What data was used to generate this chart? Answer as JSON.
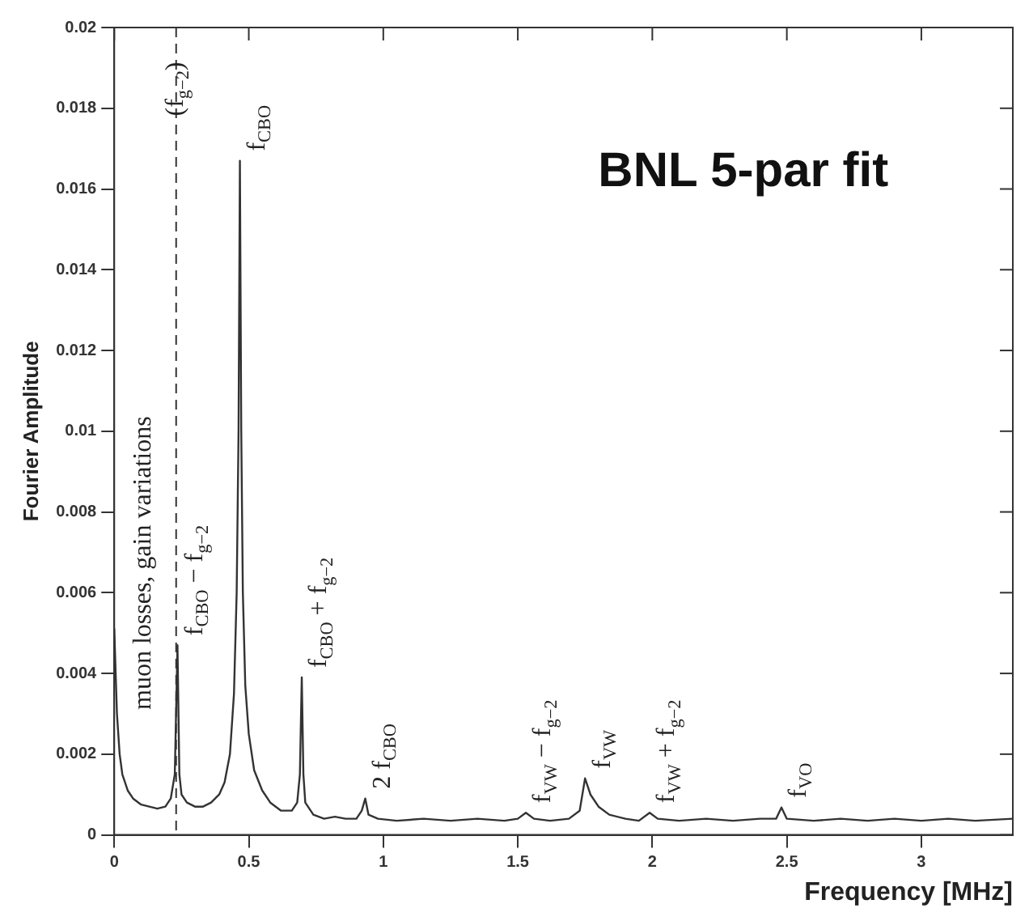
{
  "chart_data": {
    "type": "line",
    "title": "BNL 5-par fit",
    "xlabel": "Frequency [MHz]",
    "ylabel": "Fourier Amplitude",
    "x": [
      0,
      0.01,
      0.02,
      0.03,
      0.05,
      0.07,
      0.1,
      0.13,
      0.16,
      0.19,
      0.21,
      0.225,
      0.235,
      0.242,
      0.25,
      0.27,
      0.3,
      0.33,
      0.36,
      0.39,
      0.41,
      0.43,
      0.445,
      0.455,
      0.462,
      0.467,
      0.472,
      0.478,
      0.487,
      0.5,
      0.52,
      0.55,
      0.58,
      0.62,
      0.66,
      0.68,
      0.69,
      0.697,
      0.703,
      0.71,
      0.74,
      0.78,
      0.82,
      0.86,
      0.9,
      0.92,
      0.933,
      0.945,
      0.98,
      1.05,
      1.15,
      1.25,
      1.35,
      1.45,
      1.5,
      1.53,
      1.56,
      1.62,
      1.69,
      1.73,
      1.75,
      1.77,
      1.8,
      1.84,
      1.9,
      1.95,
      1.99,
      2.02,
      2.1,
      2.2,
      2.3,
      2.4,
      2.46,
      2.48,
      2.5,
      2.6,
      2.7,
      2.8,
      2.9,
      3.0,
      3.1,
      3.2,
      3.34
    ],
    "series": [
      {
        "color": "#333333",
        "values": [
          0.0051,
          0.003,
          0.002,
          0.0015,
          0.0011,
          0.0009,
          0.00075,
          0.0007,
          0.00065,
          0.0007,
          0.0009,
          0.0015,
          0.0047,
          0.0015,
          0.001,
          0.0008,
          0.0007,
          0.0007,
          0.0008,
          0.001,
          0.0013,
          0.002,
          0.0035,
          0.006,
          0.01,
          0.0167,
          0.01,
          0.006,
          0.0037,
          0.0025,
          0.0016,
          0.0011,
          0.0008,
          0.0006,
          0.0006,
          0.0008,
          0.0015,
          0.0039,
          0.0015,
          0.0008,
          0.0005,
          0.0004,
          0.00045,
          0.0004,
          0.0004,
          0.0006,
          0.0009,
          0.0005,
          0.0004,
          0.00035,
          0.0004,
          0.00035,
          0.0004,
          0.00035,
          0.0004,
          0.00055,
          0.0004,
          0.00035,
          0.0004,
          0.0006,
          0.0014,
          0.001,
          0.0007,
          0.0005,
          0.0004,
          0.00035,
          0.00055,
          0.0004,
          0.00035,
          0.0004,
          0.00035,
          0.0004,
          0.0004,
          0.00068,
          0.0004,
          0.00035,
          0.0004,
          0.00035,
          0.0004,
          0.00035,
          0.0004,
          0.00035,
          0.0004
        ]
      }
    ],
    "xlim": [
      0,
      3.34
    ],
    "xticks": [
      0,
      0.5,
      1,
      1.5,
      2,
      2.5,
      3
    ],
    "ylim": [
      0,
      0.02
    ],
    "yticks": [
      0,
      0.002,
      0.004,
      0.006,
      0.008,
      0.01,
      0.012,
      0.014,
      0.016,
      0.018,
      0.02
    ],
    "grid": false,
    "legend": false,
    "marker": "none",
    "line_style": "solid",
    "ref_lines": [
      {
        "axis": "x",
        "value": 0.23,
        "label": "(f$_{g−2}$)",
        "color": "#333333",
        "line_style": "dashed"
      }
    ],
    "annotations": [
      "muon losses, gain variations",
      {
        "text": "f$_{CBO}$",
        "x": 0.467,
        "y": 0.0167
      },
      {
        "text": "f$_{CBO}$ − f$_{g−2}$",
        "x": 0.235,
        "y": 0.0047
      },
      {
        "text": "f$_{CBO}$ + f$_{g−2}$",
        "x": 0.697,
        "y": 0.0039
      },
      {
        "text": "2 f$_{CBO}$",
        "x": 0.933,
        "y": 0.0009
      },
      {
        "text": "f$_{VW}$ − f$_{g−2}$",
        "x": 1.53,
        "y": 0.00055
      },
      {
        "text": "f$_{VW}$",
        "x": 1.75,
        "y": 0.0014
      },
      {
        "text": "f$_{VW}$ + f$_{g−2}$",
        "x": 1.99,
        "y": 0.00055
      },
      {
        "text": "f$_{VO}$",
        "x": 2.48,
        "y": 0.00068
      }
    ]
  }
}
